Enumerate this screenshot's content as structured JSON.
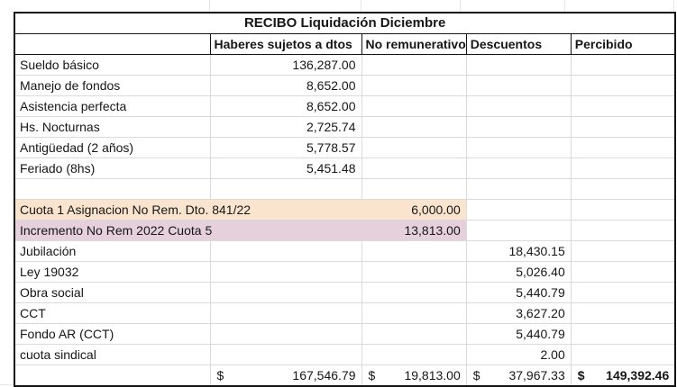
{
  "title": "RECIBO Liquidación Diciembre",
  "header": {
    "blank": "",
    "haberes": "Haberes sujetos a dtos",
    "no_rem": "No remunerativo",
    "descuentos": "Descuentos",
    "percibido": "Percibido"
  },
  "rows": [
    {
      "label": "Sueldo básico",
      "haberes": "136,287.00",
      "no_rem": "",
      "descuentos": "",
      "percibido": "",
      "fill": "none"
    },
    {
      "label": "Manejo de fondos",
      "haberes": "8,652.00",
      "no_rem": "",
      "descuentos": "",
      "percibido": "",
      "fill": "none"
    },
    {
      "label": "Asistencia perfecta",
      "haberes": "8,652.00",
      "no_rem": "",
      "descuentos": "",
      "percibido": "",
      "fill": "none"
    },
    {
      "label": "Hs. Nocturnas",
      "haberes": "2,725.74",
      "no_rem": "",
      "descuentos": "",
      "percibido": "",
      "fill": "none"
    },
    {
      "label": "Antigüedad (2 años)",
      "haberes": "5,778.57",
      "no_rem": "",
      "descuentos": "",
      "percibido": "",
      "fill": "none"
    },
    {
      "label": "Feriado (8hs)",
      "haberes": "5,451.48",
      "no_rem": "",
      "descuentos": "",
      "percibido": "",
      "fill": "none"
    },
    {
      "label": "",
      "haberes": "",
      "no_rem": "",
      "descuentos": "",
      "percibido": "",
      "fill": "none"
    },
    {
      "label": "Cuota 1 Asignacion No Rem. Dto. 841/22",
      "haberes": "",
      "no_rem": "6,000.00",
      "descuentos": "",
      "percibido": "",
      "fill": "orange"
    },
    {
      "label": "Incremento No Rem 2022 Cuota 5",
      "haberes": "",
      "no_rem": "13,813.00",
      "descuentos": "",
      "percibido": "",
      "fill": "pink"
    },
    {
      "label": "Jubilación",
      "haberes": "",
      "no_rem": "",
      "descuentos": "18,430.15",
      "percibido": "",
      "fill": "none"
    },
    {
      "label": "Ley 19032",
      "haberes": "",
      "no_rem": "",
      "descuentos": "5,026.40",
      "percibido": "",
      "fill": "none"
    },
    {
      "label": "Obra social",
      "haberes": "",
      "no_rem": "",
      "descuentos": "5,440.79",
      "percibido": "",
      "fill": "none"
    },
    {
      "label": "CCT",
      "haberes": "",
      "no_rem": "",
      "descuentos": "3,627.20",
      "percibido": "",
      "fill": "none"
    },
    {
      "label": "Fondo AR (CCT)",
      "haberes": "",
      "no_rem": "",
      "descuentos": "5,440.79",
      "percibido": "",
      "fill": "none"
    },
    {
      "label": "cuota sindical",
      "haberes": "",
      "no_rem": "",
      "descuentos": "2.00",
      "percibido": "",
      "fill": "none"
    }
  ],
  "totals": {
    "currency_symbol": "$",
    "haberes": "167,546.79",
    "no_rem": "19,813.00",
    "descuentos": "37,967.33",
    "percibido": "149,392.46"
  },
  "colors": {
    "row_fill_orange": "#FBE4CE",
    "row_fill_pink": "#E5D0DB",
    "grid_line": "#DADADA",
    "table_border": "#141414"
  }
}
